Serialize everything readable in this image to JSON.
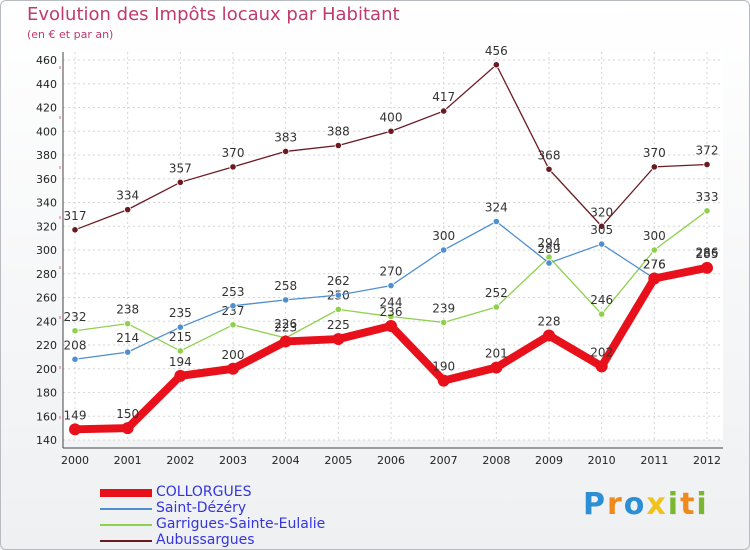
{
  "header": {
    "title": "Evolution des Impôts locaux par Habitant",
    "subtitle": "(en € et par an)"
  },
  "logo": {
    "text": "Proxiti",
    "colors": [
      "#2c8fd6",
      "#f08a1c",
      "#2c8fd6",
      "#f2c21c",
      "#7ab630",
      "#f08a1c",
      "#7ab630"
    ]
  },
  "chart_data": {
    "type": "line",
    "x": [
      "2000",
      "2001",
      "2002",
      "2003",
      "2004",
      "2005",
      "2006",
      "2007",
      "2008",
      "2009",
      "2010",
      "2011",
      "2012"
    ],
    "ylim": [
      140,
      460
    ],
    "yticks": [
      140,
      160,
      180,
      200,
      220,
      240,
      260,
      280,
      300,
      320,
      340,
      360,
      380,
      400,
      420,
      440,
      460
    ],
    "grid": true,
    "legend_position": "bottom-left",
    "series": [
      {
        "name": "COLLORGUES",
        "color": "#e8101a",
        "values": [
          149,
          150,
          194,
          200,
          223,
          225,
          236,
          190,
          201,
          228,
          202,
          276,
          285
        ]
      },
      {
        "name": "Saint-Dézéry",
        "color": "#4f8fcf",
        "values": [
          208,
          214,
          235,
          253,
          258,
          262,
          270,
          300,
          324,
          289,
          305,
          276,
          286
        ]
      },
      {
        "name": "Garrigues-Sainte-Eulalie",
        "color": "#8fd14f",
        "values": [
          232,
          238,
          215,
          237,
          226,
          250,
          244,
          239,
          252,
          294,
          246,
          300,
          333
        ]
      },
      {
        "name": "Aubussargues",
        "color": "#6b1a22",
        "values": [
          317,
          334,
          357,
          370,
          383,
          388,
          400,
          417,
          456,
          368,
          320,
          370,
          372
        ]
      }
    ]
  }
}
